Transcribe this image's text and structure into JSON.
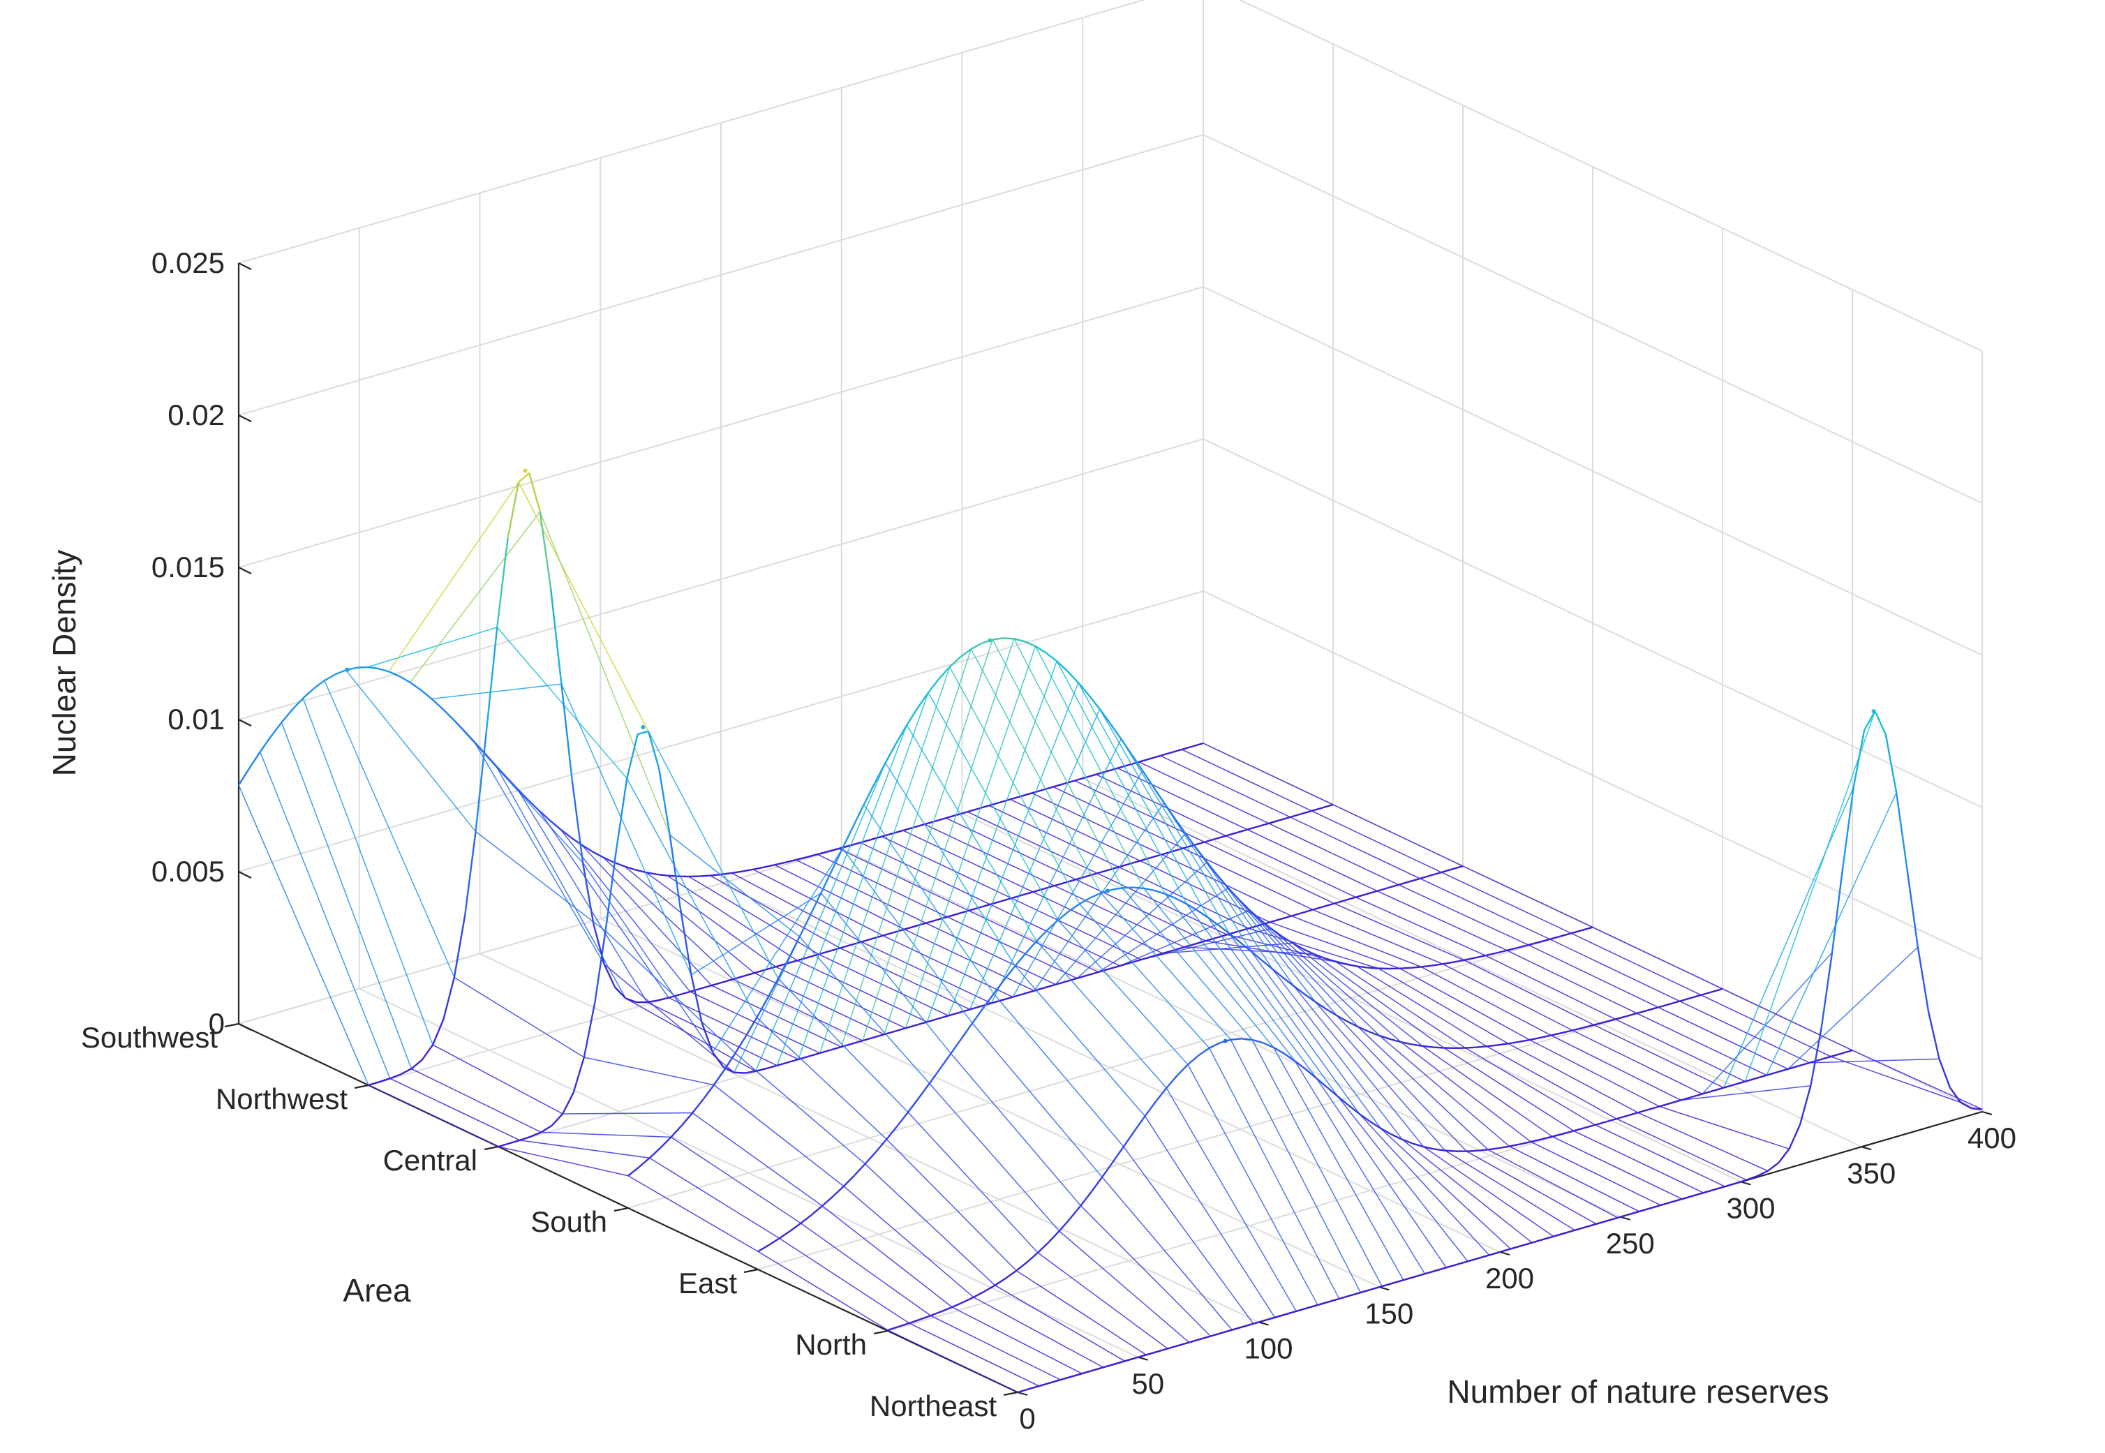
{
  "chart_data": {
    "type": "surface",
    "render": "waterfall-mesh",
    "zlabel": "Nuclear Density",
    "xlabel": "Number of nature reserves",
    "ylabel": "Area",
    "xlim": [
      0,
      400
    ],
    "zlim": [
      0,
      0.025
    ],
    "x_ticks": [
      0,
      50,
      100,
      150,
      200,
      250,
      300,
      350,
      400
    ],
    "z_ticks": [
      "0",
      "0.005",
      "0.01",
      "0.015",
      "0.02",
      "0.025"
    ],
    "areas": [
      "Southwest",
      "Northwest",
      "Central",
      "South",
      "East",
      "North",
      "Northeast"
    ],
    "grid": true,
    "colormap": [
      "#3a1fd6",
      "#2f55ee",
      "#1f8ff0",
      "#17c3d6",
      "#e6d81a"
    ],
    "series": [
      {
        "name": "Southwest",
        "peak_x": 45,
        "peak_density": 0.0106,
        "width": 58
      },
      {
        "name": "Northwest",
        "peak_x": 65,
        "peak_density": 0.0187,
        "width": 15
      },
      {
        "name": "Central",
        "peak_x": 60,
        "peak_density": 0.0124,
        "width": 13
      },
      {
        "name": "South",
        "peak_x": 150,
        "peak_density": 0.0152,
        "width": 65
      },
      {
        "name": "East",
        "peak_x": 145,
        "peak_density": 0.0091,
        "width": 62
      },
      {
        "name": "North",
        "peak_x": 140,
        "peak_density": 0.0063,
        "width": 42
      },
      {
        "name": "Northeast",
        "peak_x": 355,
        "peak_density": 0.0142,
        "width": 14
      }
    ]
  }
}
